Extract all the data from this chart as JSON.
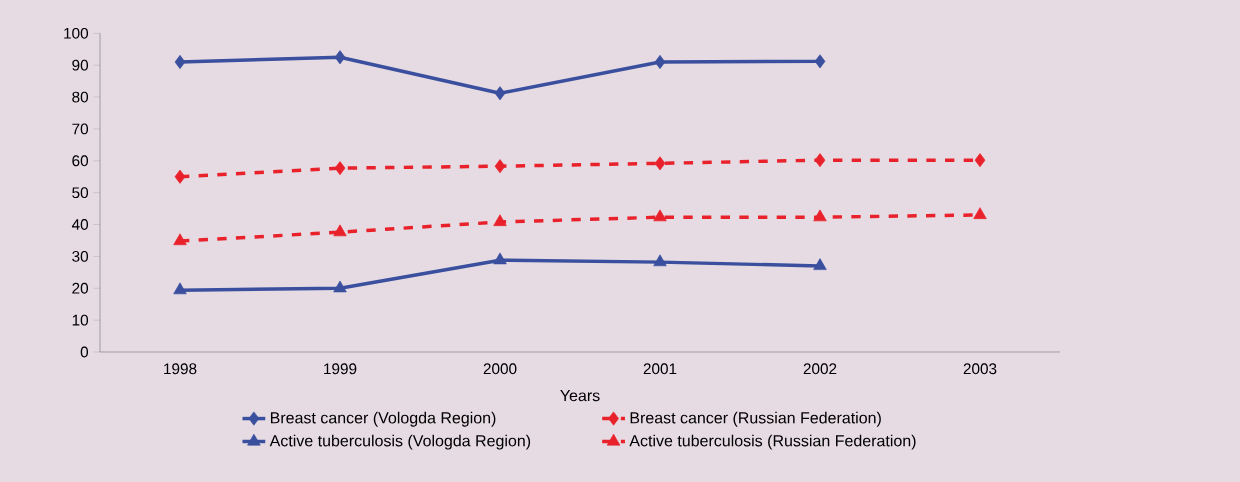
{
  "chart_data": {
    "type": "line",
    "xlabel": "Years",
    "categories": [
      "1998",
      "1999",
      "2000",
      "2001",
      "2002",
      "2003"
    ],
    "series": [
      {
        "name": "Breast cancer (Vologda Region)",
        "color": "#3a4f9e",
        "marker": "diamond",
        "line_style": "solid",
        "values": [
          91,
          92.5,
          81.2,
          91,
          91.2,
          null
        ]
      },
      {
        "name": "Breast cancer (Russian Federation)",
        "color": "#e8212b",
        "marker": "diamond",
        "line_style": "dashed",
        "values": [
          55,
          57.7,
          58.3,
          59.2,
          60.2,
          60.2
        ]
      },
      {
        "name": "Active tuberculosis (Vologda Region)",
        "color": "#3a4f9e",
        "marker": "triangle",
        "line_style": "solid",
        "values": [
          19.4,
          20,
          28.8,
          28.2,
          27,
          null
        ]
      },
      {
        "name": "Active tuberculosis (Russian Federation)",
        "color": "#e8212b",
        "marker": "triangle",
        "line_style": "dashed",
        "values": [
          34.8,
          37.6,
          40.8,
          42.3,
          42.3,
          43
        ]
      }
    ],
    "ylim": [
      0,
      100
    ],
    "yticks": [
      0,
      10,
      20,
      30,
      40,
      50,
      60,
      70,
      80,
      90,
      100
    ],
    "grid": false,
    "legend": "bottom"
  }
}
